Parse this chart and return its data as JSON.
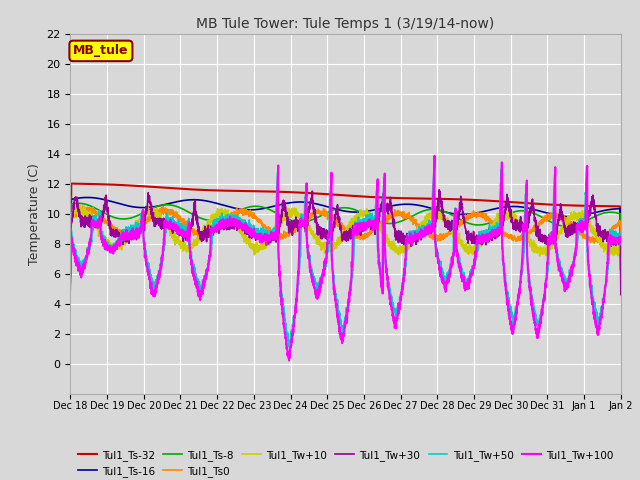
{
  "title": "MB Tule Tower: Tule Temps 1 (3/19/14-now)",
  "ylabel": "Temperature (C)",
  "ylim": [
    -2,
    22
  ],
  "yticks": [
    0,
    2,
    4,
    6,
    8,
    10,
    12,
    14,
    16,
    18,
    20,
    22
  ],
  "xtick_labels": [
    "Dec 18",
    "Dec 19",
    "Dec 20",
    "Dec 21",
    "Dec 22",
    "Dec 23",
    "Dec 24",
    "Dec 25",
    "Dec 26",
    "Dec 27",
    "Dec 28",
    "Dec 29",
    "Dec 30",
    "Dec 31",
    "Jan 1",
    "Jan 2"
  ],
  "n_days": 15.5,
  "background_color": "#d8d8d8",
  "plot_bg_color": "#d8d8d8",
  "grid_color": "#ffffff",
  "legend_box": {
    "label": "MB_tule",
    "facecolor": "#ffff00",
    "edgecolor": "#880000",
    "textcolor": "#880000"
  },
  "series": [
    {
      "label": "Tul1_Ts-32",
      "color": "#cc0000",
      "lw": 1.5
    },
    {
      "label": "Tul1_Ts-16",
      "color": "#000099",
      "lw": 1.2
    },
    {
      "label": "Tul1_Ts-8",
      "color": "#00aa00",
      "lw": 1.2
    },
    {
      "label": "Tul1_Ts0",
      "color": "#ff8800",
      "lw": 1.2
    },
    {
      "label": "Tul1_Tw+10",
      "color": "#cccc00",
      "lw": 1.2
    },
    {
      "label": "Tul1_Tw+30",
      "color": "#990099",
      "lw": 1.2
    },
    {
      "label": "Tul1_Tw+50",
      "color": "#00cccc",
      "lw": 1.2
    },
    {
      "label": "Tul1_Tw+100",
      "color": "#ff00ff",
      "lw": 1.5
    }
  ]
}
